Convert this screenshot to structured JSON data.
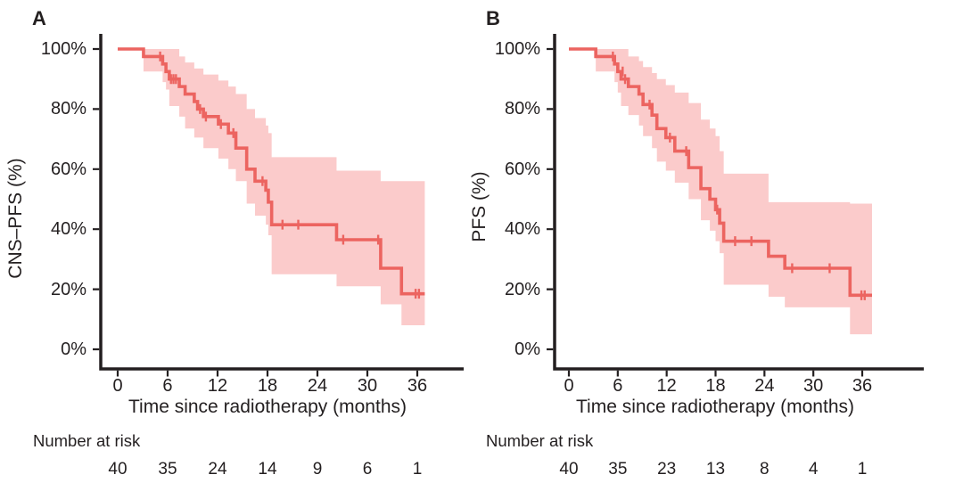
{
  "style": {
    "line_color": "#ec6460",
    "band_color": "#fbcbcb",
    "axis_color": "#231f20",
    "text_color": "#231f20",
    "background": "#ffffff"
  },
  "chart_data": [
    {
      "type": "line",
      "subtype": "kaplan-meier-step",
      "panel_label": "A",
      "ylabel": "CNS–PFS (%)",
      "xlabel": "Time since radiotherapy (months)",
      "xlim": [
        0,
        41.5
      ],
      "ylim": [
        0,
        100
      ],
      "grid": "off",
      "legend": "none",
      "x_ticks": [
        0,
        6,
        12,
        18,
        24,
        30,
        36
      ],
      "x_tick_labels": [
        "0",
        "6",
        "12",
        "18",
        "24",
        "30",
        "36"
      ],
      "y_ticks": [
        100,
        80,
        60,
        40,
        20,
        0
      ],
      "y_tick_labels": [
        "100%",
        "80%",
        "60%",
        "40%",
        "20%",
        "0%"
      ],
      "series": [
        {
          "name": "CNS-PFS",
          "steps": [
            [
              0,
              100
            ],
            [
              3.1,
              97.5
            ],
            [
              5.4,
              95
            ],
            [
              5.8,
              92.5
            ],
            [
              6.2,
              90
            ],
            [
              7.4,
              87.5
            ],
            [
              8.1,
              85
            ],
            [
              9.2,
              82.5
            ],
            [
              9.6,
              80
            ],
            [
              10.3,
              77.5
            ],
            [
              12.1,
              75
            ],
            [
              13.3,
              72
            ],
            [
              14.2,
              67
            ],
            [
              15.5,
              60
            ],
            [
              16.5,
              56
            ],
            [
              17.8,
              53
            ],
            [
              18.1,
              49
            ],
            [
              18.5,
              41.5
            ],
            [
              26.3,
              36.5
            ],
            [
              31.6,
              27
            ],
            [
              34.1,
              18.5
            ]
          ],
          "end_t": 36.9
        }
      ],
      "censor_marks": [
        [
          5.1,
          97.5
        ],
        [
          6.4,
          90
        ],
        [
          6.7,
          90
        ],
        [
          7.0,
          90
        ],
        [
          9.9,
          80
        ],
        [
          10.6,
          77.5
        ],
        [
          12.4,
          75
        ],
        [
          13.9,
          72
        ],
        [
          17.4,
          56
        ],
        [
          19.8,
          41.5
        ],
        [
          21.7,
          41.5
        ],
        [
          27.1,
          36.5
        ],
        [
          31.3,
          36.5
        ],
        [
          35.8,
          18.5
        ],
        [
          36.2,
          18.5
        ]
      ],
      "confidence_band": [
        [
          3.1,
          92.5,
          100
        ],
        [
          5.4,
          89,
          100
        ],
        [
          5.8,
          86.5,
          100
        ],
        [
          6.2,
          81,
          100
        ],
        [
          7.4,
          77.5,
          97.5
        ],
        [
          8.1,
          73.5,
          95.5
        ],
        [
          9.2,
          70.5,
          93.5
        ],
        [
          10.3,
          67,
          91.5
        ],
        [
          12.1,
          63.5,
          89.5
        ],
        [
          13.3,
          60,
          87.5
        ],
        [
          14.2,
          56,
          85
        ],
        [
          15.5,
          48.5,
          80
        ],
        [
          16.5,
          44.5,
          77
        ],
        [
          17.8,
          41.5,
          74.5
        ],
        [
          18.1,
          38,
          72
        ],
        [
          18.5,
          25,
          64
        ],
        [
          26.3,
          21,
          59.5
        ],
        [
          31.6,
          15,
          56
        ],
        [
          34.1,
          8,
          56
        ]
      ],
      "number_at_risk": {
        "label": "Number at risk",
        "times": [
          0,
          6,
          12,
          18,
          24,
          30,
          36
        ],
        "counts": [
          40,
          35,
          24,
          14,
          9,
          6,
          1
        ]
      }
    },
    {
      "type": "line",
      "subtype": "kaplan-meier-step",
      "panel_label": "B",
      "ylabel": "PFS (%)",
      "xlabel": "Time since radiotherapy (months)",
      "xlim": [
        0,
        41.5
      ],
      "ylim": [
        0,
        100
      ],
      "grid": "off",
      "legend": "none",
      "x_ticks": [
        0,
        6,
        12,
        18,
        24,
        30,
        36
      ],
      "x_tick_labels": [
        "0",
        "6",
        "12",
        "18",
        "24",
        "30",
        "36"
      ],
      "y_ticks": [
        100,
        80,
        60,
        40,
        20,
        0
      ],
      "y_tick_labels": [
        "100%",
        "80%",
        "60%",
        "40%",
        "20%",
        "0%"
      ],
      "series": [
        {
          "name": "PFS",
          "steps": [
            [
              0,
              100
            ],
            [
              3.3,
              97.5
            ],
            [
              5.6,
              95
            ],
            [
              6.0,
              92.5
            ],
            [
              6.4,
              90
            ],
            [
              7.3,
              87.5
            ],
            [
              8.6,
              85
            ],
            [
              9.1,
              81.5
            ],
            [
              10.2,
              78
            ],
            [
              10.8,
              73.5
            ],
            [
              11.9,
              70.5
            ],
            [
              13.0,
              66
            ],
            [
              14.7,
              60.5
            ],
            [
              16.2,
              53.5
            ],
            [
              17.3,
              50
            ],
            [
              18.0,
              46.5
            ],
            [
              18.5,
              42
            ],
            [
              19.0,
              36
            ],
            [
              24.5,
              31
            ],
            [
              26.5,
              27
            ],
            [
              34.5,
              18
            ]
          ],
          "end_t": 37.2
        }
      ],
      "censor_marks": [
        [
          5.4,
          97.5
        ],
        [
          6.6,
          92.5
        ],
        [
          6.9,
          90
        ],
        [
          9.9,
          81.5
        ],
        [
          12.4,
          70.5
        ],
        [
          14.4,
          66
        ],
        [
          18.2,
          46.5
        ],
        [
          20.4,
          36
        ],
        [
          22.4,
          36
        ],
        [
          27.4,
          27
        ],
        [
          32.0,
          27
        ],
        [
          35.9,
          18
        ],
        [
          36.3,
          18
        ]
      ],
      "confidence_band": [
        [
          3.3,
          92.5,
          100
        ],
        [
          5.6,
          89,
          100
        ],
        [
          6.0,
          85.5,
          100
        ],
        [
          6.4,
          81,
          100
        ],
        [
          7.3,
          78,
          97.5
        ],
        [
          8.6,
          74.5,
          96
        ],
        [
          9.1,
          71,
          94
        ],
        [
          10.2,
          67,
          92
        ],
        [
          10.8,
          62.5,
          90
        ],
        [
          11.9,
          59.5,
          88
        ],
        [
          13.0,
          55.5,
          85.5
        ],
        [
          14.7,
          50,
          82
        ],
        [
          16.2,
          43,
          76.5
        ],
        [
          17.3,
          39.5,
          73.5
        ],
        [
          18.0,
          36,
          71
        ],
        [
          18.5,
          32,
          66
        ],
        [
          19.0,
          21.5,
          58.5
        ],
        [
          24.5,
          17.5,
          49
        ],
        [
          26.5,
          14,
          49
        ],
        [
          34.5,
          5,
          48.5
        ]
      ],
      "number_at_risk": {
        "label": "Number at risk",
        "times": [
          0,
          6,
          12,
          18,
          24,
          30,
          36
        ],
        "counts": [
          40,
          35,
          23,
          13,
          8,
          4,
          1
        ]
      }
    }
  ]
}
